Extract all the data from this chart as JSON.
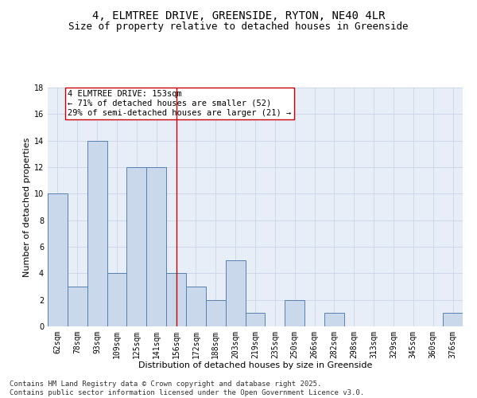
{
  "title_line1": "4, ELMTREE DRIVE, GREENSIDE, RYTON, NE40 4LR",
  "title_line2": "Size of property relative to detached houses in Greenside",
  "xlabel": "Distribution of detached houses by size in Greenside",
  "ylabel": "Number of detached properties",
  "categories": [
    "62sqm",
    "78sqm",
    "93sqm",
    "109sqm",
    "125sqm",
    "141sqm",
    "156sqm",
    "172sqm",
    "188sqm",
    "203sqm",
    "219sqm",
    "235sqm",
    "250sqm",
    "266sqm",
    "282sqm",
    "298sqm",
    "313sqm",
    "329sqm",
    "345sqm",
    "360sqm",
    "376sqm"
  ],
  "values": [
    10,
    3,
    14,
    4,
    12,
    12,
    4,
    3,
    2,
    5,
    1,
    0,
    2,
    0,
    1,
    0,
    0,
    0,
    0,
    0,
    1
  ],
  "bar_color": "#c9d9eb",
  "bar_edge_color": "#5580b0",
  "highlight_index": 6,
  "highlight_line_color": "#cc0000",
  "annotation_line1": "4 ELMTREE DRIVE: 153sqm",
  "annotation_line2": "← 71% of detached houses are smaller (52)",
  "annotation_line3": "29% of semi-detached houses are larger (21) →",
  "annotation_box_color": "#ffffff",
  "annotation_box_edge_color": "#cc0000",
  "ylim": [
    0,
    18
  ],
  "yticks": [
    0,
    2,
    4,
    6,
    8,
    10,
    12,
    14,
    16,
    18
  ],
  "grid_color": "#c8d4e8",
  "background_color": "#e8eef8",
  "footer_line1": "Contains HM Land Registry data © Crown copyright and database right 2025.",
  "footer_line2": "Contains public sector information licensed under the Open Government Licence v3.0.",
  "title_fontsize": 10,
  "subtitle_fontsize": 9,
  "axis_label_fontsize": 8,
  "tick_fontsize": 7,
  "annotation_fontsize": 7.5,
  "footer_fontsize": 6.5
}
